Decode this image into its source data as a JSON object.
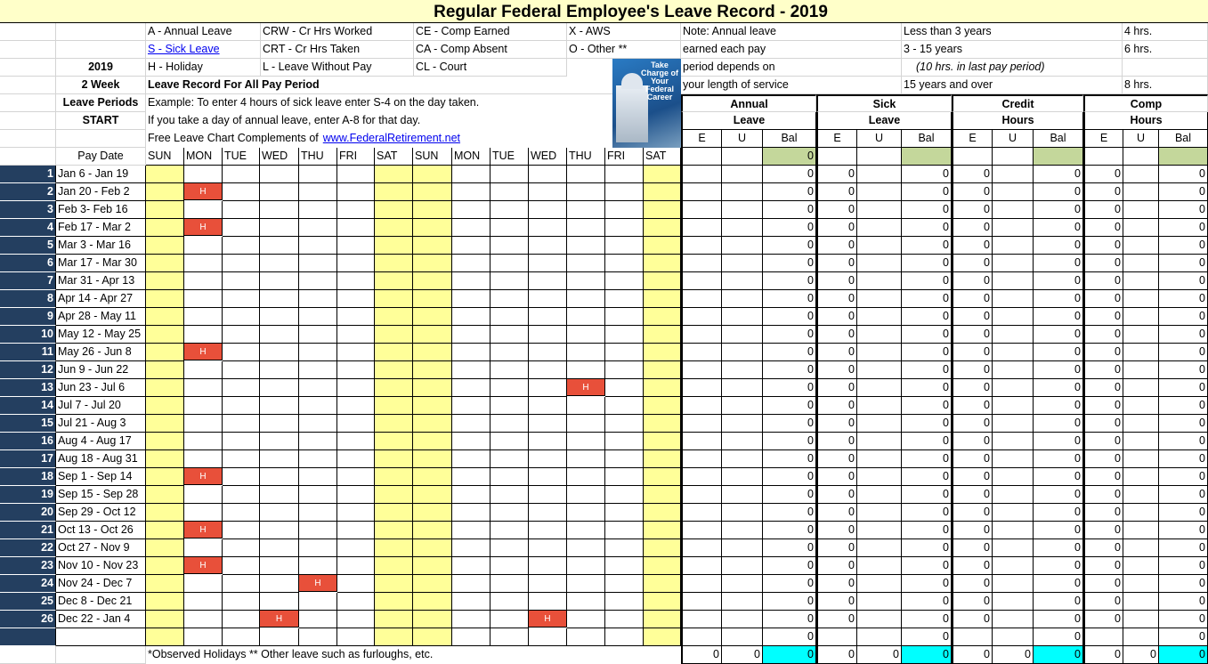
{
  "title": "Regular Federal Employee's Leave Record - 2019",
  "legend": {
    "r1": [
      "A - Annual Leave",
      "CRW - Cr Hrs Worked",
      "CE - Comp Earned",
      "X - AWS"
    ],
    "r2": [
      "S  - Sick Leave",
      "CRT - Cr Hrs Taken",
      "CA - Comp Absent",
      "O - Other **"
    ],
    "r3": [
      "H - Holiday",
      "L    - Leave Without Pay",
      "CL  - Court"
    ]
  },
  "left_labels": [
    "2019",
    "2 Week",
    "Leave Periods",
    "START"
  ],
  "leave_record_heading": "Leave Record For All Pay Period",
  "example_1": "Example: To enter 4 hours of sick leave enter S-4 on the day taken.",
  "example_2": "If you take a day of annual leave, enter A-8 for that day.",
  "complements_text": "Free Leave Chart Complements of",
  "complements_link": "www.FederalRetirement.net",
  "book": {
    "title": "Take Charge of Your Federal Career"
  },
  "note": {
    "lines": [
      "Note:  Annual leave",
      "earned each pay",
      "period depends on",
      "your length of service"
    ],
    "service": [
      "Less than 3 years",
      "3 - 15 years",
      "(10 hrs. in last pay period)",
      "15 years and over"
    ],
    "hours": [
      "4 hrs.",
      "6 hrs.",
      "",
      "8 hrs."
    ]
  },
  "groups": [
    [
      "Annual",
      "Leave"
    ],
    [
      "Sick",
      "Leave"
    ],
    [
      "Credit",
      "Hours"
    ],
    [
      "Comp",
      "Hours"
    ]
  ],
  "subheaders": [
    "E",
    "U",
    "Bal"
  ],
  "pay_date_header": "Pay Date",
  "days": [
    "SUN",
    "MON",
    "TUE",
    "WED",
    "THU",
    "FRI",
    "SAT",
    "SUN",
    "MON",
    "TUE",
    "WED",
    "THU",
    "FRI",
    "SAT"
  ],
  "holiday_mark": "H",
  "start_balances": [
    "",
    "",
    "0",
    "",
    "",
    "",
    "",
    "",
    "",
    "",
    "",
    ""
  ],
  "rows": [
    {
      "num": "1",
      "pay_date": "Jan 6 - Jan 19",
      "holidays": []
    },
    {
      "num": "2",
      "pay_date": "Jan 20 - Feb 2",
      "holidays": [
        1
      ]
    },
    {
      "num": "3",
      "pay_date": "Feb 3- Feb 16",
      "holidays": []
    },
    {
      "num": "4",
      "pay_date": "Feb 17 - Mar 2",
      "holidays": [
        1
      ]
    },
    {
      "num": "5",
      "pay_date": "Mar 3 - Mar 16",
      "holidays": []
    },
    {
      "num": "6",
      "pay_date": "Mar 17 - Mar 30",
      "holidays": []
    },
    {
      "num": "7",
      "pay_date": "Mar 31 - Apr  13",
      "holidays": []
    },
    {
      "num": "8",
      "pay_date": "Apr  14 - Apr 27",
      "holidays": []
    },
    {
      "num": "9",
      "pay_date": "Apr 28 - May 11",
      "holidays": []
    },
    {
      "num": "10",
      "pay_date": "May 12 - May 25",
      "holidays": []
    },
    {
      "num": "11",
      "pay_date": "May 26 - Jun 8",
      "holidays": [
        1
      ]
    },
    {
      "num": "12",
      "pay_date": "Jun 9 - Jun 22",
      "holidays": []
    },
    {
      "num": "13",
      "pay_date": "Jun 23 - Jul 6",
      "holidays": [
        11
      ]
    },
    {
      "num": "14",
      "pay_date": "Jul 7 - Jul 20",
      "holidays": []
    },
    {
      "num": "15",
      "pay_date": "Jul 21 - Aug 3",
      "holidays": []
    },
    {
      "num": "16",
      "pay_date": "Aug 4 - Aug 17",
      "holidays": []
    },
    {
      "num": "17",
      "pay_date": "Aug 18 - Aug 31",
      "holidays": []
    },
    {
      "num": "18",
      "pay_date": "Sep 1 - Sep  14",
      "holidays": [
        1
      ]
    },
    {
      "num": "19",
      "pay_date": "Sep  15 - Sep 28",
      "holidays": []
    },
    {
      "num": "20",
      "pay_date": "Sep 29 - Oct  12",
      "holidays": []
    },
    {
      "num": "21",
      "pay_date": "Oct  13 - Oct 26",
      "holidays": [
        1
      ]
    },
    {
      "num": "22",
      "pay_date": "Oct 27 - Nov  9",
      "holidays": []
    },
    {
      "num": "23",
      "pay_date": "Nov  10 - Nov 23",
      "holidays": [
        1
      ]
    },
    {
      "num": "24",
      "pay_date": "Nov 24 - Dec  7",
      "holidays": [
        4
      ]
    },
    {
      "num": "25",
      "pay_date": "Dec  8 - Dec 21",
      "holidays": []
    },
    {
      "num": "26",
      "pay_date": "Dec 22 - Jan 4",
      "holidays": [
        3,
        10
      ]
    }
  ],
  "row_values": [
    "",
    "",
    "0",
    "0",
    "",
    "0",
    "0",
    "",
    "0",
    "0",
    "",
    "0"
  ],
  "blank_row_values": [
    "",
    "",
    "0",
    "",
    "",
    "0",
    "",
    "",
    "0",
    "",
    "",
    "0"
  ],
  "totals": [
    "0",
    "0",
    "0",
    "0",
    "0",
    "0",
    "0",
    "0",
    "0",
    "0",
    "0",
    "0"
  ],
  "footnote": "*Observed Holidays  ** Other leave such as furloughs, etc.",
  "colors": {
    "holiday": "#e8503a",
    "weekend": "#ffff99",
    "balance_start": "#c4d79b",
    "totals_balance": "#00ffff",
    "row_number": "#243f60",
    "title_bg": "#ffffc9"
  }
}
